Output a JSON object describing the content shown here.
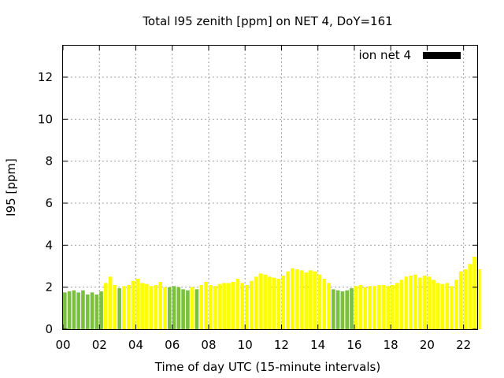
{
  "chart_data": {
    "type": "bar",
    "title": "Total I95 zenith [ppm] on NET 4, DoY=161",
    "xlabel": "Time of day UTC (15-minute intervals)",
    "ylabel": "I95 [ppm]",
    "legend": {
      "label": "ion net 4",
      "color": "#000000",
      "placement": "top-right"
    },
    "grid": true,
    "xlim": [
      0,
      22.75
    ],
    "ylim": [
      0,
      13.5
    ],
    "x_ticks": [
      {
        "value": 0,
        "label": "00"
      },
      {
        "value": 2,
        "label": "02"
      },
      {
        "value": 4,
        "label": "04"
      },
      {
        "value": 6,
        "label": "06"
      },
      {
        "value": 8,
        "label": "08"
      },
      {
        "value": 10,
        "label": "10"
      },
      {
        "value": 12,
        "label": "12"
      },
      {
        "value": 14,
        "label": "14"
      },
      {
        "value": 16,
        "label": "16"
      },
      {
        "value": 18,
        "label": "18"
      },
      {
        "value": 20,
        "label": "20"
      },
      {
        "value": 22,
        "label": "22"
      }
    ],
    "y_ticks": [
      {
        "value": 0,
        "label": "0"
      },
      {
        "value": 2,
        "label": "2"
      },
      {
        "value": 4,
        "label": "4"
      },
      {
        "value": 6,
        "label": "6"
      },
      {
        "value": 8,
        "label": "8"
      },
      {
        "value": 10,
        "label": "10"
      },
      {
        "value": 12,
        "label": "12"
      }
    ],
    "colors": {
      "green": "#7cc040",
      "yellow": "#ffff00"
    },
    "interval_hours": 0.25,
    "bar_width_hours": 0.2,
    "values": [
      1.75,
      1.8,
      1.85,
      1.75,
      1.85,
      1.65,
      1.75,
      1.65,
      1.8,
      2.2,
      2.5,
      2.1,
      1.95,
      2.05,
      2.1,
      2.3,
      2.4,
      2.2,
      2.15,
      2.05,
      2.1,
      2.25,
      2.0,
      2.0,
      2.05,
      2.0,
      1.9,
      1.85,
      2.0,
      1.9,
      2.1,
      2.25,
      2.1,
      2.05,
      2.15,
      2.2,
      2.2,
      2.25,
      2.4,
      2.2,
      2.1,
      2.3,
      2.5,
      2.65,
      2.6,
      2.5,
      2.45,
      2.4,
      2.55,
      2.75,
      2.9,
      2.85,
      2.8,
      2.7,
      2.8,
      2.75,
      2.6,
      2.4,
      2.2,
      1.9,
      1.85,
      1.8,
      1.85,
      1.95,
      2.05,
      2.1,
      2.0,
      2.05,
      2.05,
      2.1,
      2.1,
      2.05,
      2.1,
      2.2,
      2.35,
      2.5,
      2.55,
      2.6,
      2.45,
      2.55,
      2.5,
      2.35,
      2.2,
      2.15,
      2.2,
      2.05,
      2.35,
      2.75,
      2.85,
      3.1,
      3.45,
      2.85
    ],
    "bar_colors": [
      "green",
      "green",
      "green",
      "green",
      "green",
      "green",
      "green",
      "green",
      "green",
      "yellow",
      "yellow",
      "yellow",
      "green",
      "yellow",
      "yellow",
      "yellow",
      "yellow",
      "yellow",
      "yellow",
      "yellow",
      "yellow",
      "yellow",
      "yellow",
      "green",
      "green",
      "green",
      "green",
      "green",
      "yellow",
      "green",
      "yellow",
      "yellow",
      "yellow",
      "yellow",
      "yellow",
      "yellow",
      "yellow",
      "yellow",
      "yellow",
      "yellow",
      "yellow",
      "yellow",
      "yellow",
      "yellow",
      "yellow",
      "yellow",
      "yellow",
      "yellow",
      "yellow",
      "yellow",
      "yellow",
      "yellow",
      "yellow",
      "yellow",
      "yellow",
      "yellow",
      "yellow",
      "yellow",
      "yellow",
      "green",
      "green",
      "green",
      "green",
      "green",
      "yellow",
      "yellow",
      "yellow",
      "yellow",
      "yellow",
      "yellow",
      "yellow",
      "yellow",
      "yellow",
      "yellow",
      "yellow",
      "yellow",
      "yellow",
      "yellow",
      "yellow",
      "yellow",
      "yellow",
      "yellow",
      "yellow",
      "yellow",
      "yellow",
      "yellow",
      "yellow",
      "yellow",
      "yellow",
      "yellow",
      "yellow",
      "yellow"
    ]
  }
}
